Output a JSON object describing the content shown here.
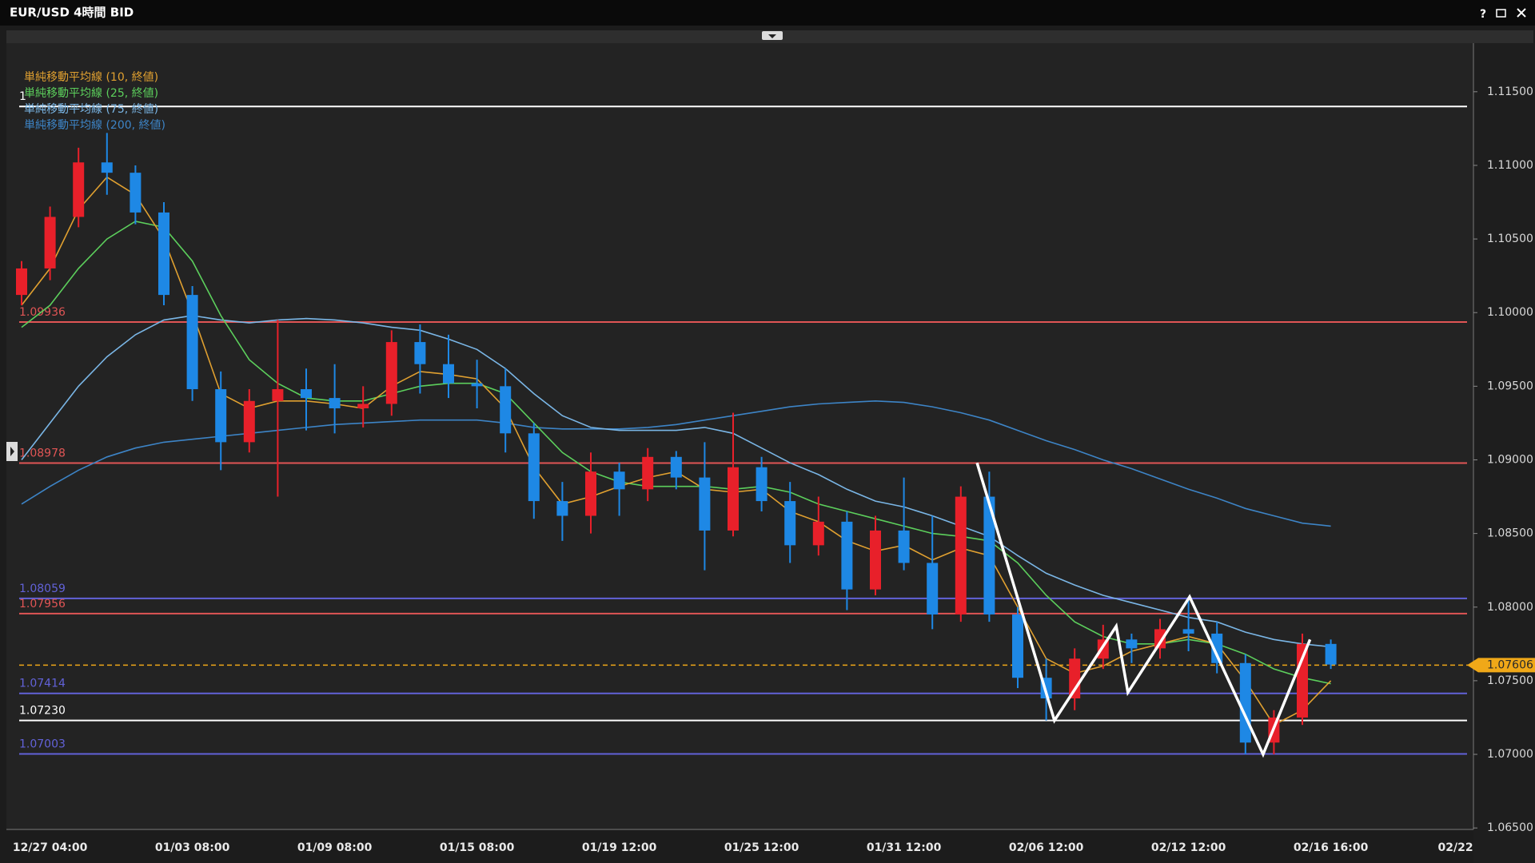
{
  "window": {
    "title": "EUR/USD 4時間 BID",
    "help": "?"
  },
  "chart_data": {
    "type": "candlestick",
    "categories": [
      null,
      "12/27 04:00",
      null,
      null,
      null,
      null,
      "01/03 08:00",
      null,
      null,
      null,
      null,
      "01/09 08:00",
      null,
      null,
      null,
      null,
      "01/15 08:00",
      null,
      null,
      null,
      null,
      "01/19 12:00",
      null,
      null,
      null,
      null,
      "01/25 12:00",
      null,
      null,
      null,
      null,
      "01/31 12:00",
      null,
      null,
      null,
      null,
      "02/06 12:00",
      null,
      null,
      null,
      null,
      "02/12 12:00",
      null,
      null,
      null,
      null,
      "02/16 16:00",
      null,
      null,
      null,
      null,
      "02/22"
    ],
    "open": [
      1.1012,
      1.103,
      1.1065,
      1.1102,
      1.1095,
      1.1068,
      1.1012,
      1.0948,
      1.0912,
      1.094,
      1.0948,
      1.0942,
      1.0935,
      1.0938,
      1.098,
      1.0965,
      1.0952,
      1.095,
      1.0918,
      1.0872,
      1.0862,
      1.0892,
      1.088,
      1.0902,
      1.0888,
      1.0852,
      1.0895,
      1.0872,
      1.0842,
      1.0858,
      1.0812,
      1.0852,
      1.083,
      1.0795,
      1.0875,
      1.0795,
      1.0752,
      1.0738,
      1.0765,
      1.0778,
      1.0772,
      1.0785,
      1.0782,
      1.0762,
      1.0708,
      1.0725,
      1.0775,
      null,
      null,
      null,
      null,
      null
    ],
    "high": [
      1.1035,
      1.1072,
      1.1112,
      1.1122,
      1.11,
      1.1075,
      1.1018,
      1.096,
      1.0948,
      1.0995,
      1.0962,
      1.0965,
      1.095,
      1.0988,
      1.0992,
      1.0985,
      1.0968,
      1.0962,
      1.0925,
      1.0885,
      1.0905,
      1.0898,
      1.0908,
      1.0906,
      1.0912,
      1.0932,
      1.0902,
      1.0885,
      1.0875,
      1.0865,
      1.0862,
      1.0888,
      1.0862,
      1.0882,
      1.0892,
      1.08,
      1.0765,
      1.0772,
      1.0788,
      1.0782,
      1.0792,
      1.0805,
      1.079,
      1.0768,
      1.073,
      1.0782,
      1.0778,
      null,
      null,
      null,
      null,
      null
    ],
    "low": [
      1.1005,
      1.1022,
      1.1058,
      1.108,
      1.106,
      1.1005,
      1.094,
      1.0893,
      1.0905,
      1.0875,
      1.092,
      1.0918,
      1.0922,
      1.093,
      1.0945,
      1.0942,
      1.0935,
      1.0905,
      1.086,
      1.0845,
      1.085,
      1.0862,
      1.0872,
      1.088,
      1.0825,
      1.0848,
      1.0865,
      1.083,
      1.0835,
      1.0798,
      1.0808,
      1.0825,
      1.0785,
      1.079,
      1.079,
      1.0745,
      1.0723,
      1.073,
      1.0758,
      1.0762,
      1.0765,
      1.077,
      1.0755,
      1.07,
      1.07,
      1.072,
      1.0758,
      null,
      null,
      null,
      null,
      null
    ],
    "close": [
      1.103,
      1.1065,
      1.1102,
      1.1095,
      1.1068,
      1.1012,
      1.0948,
      1.0912,
      1.094,
      1.0948,
      1.0942,
      1.0935,
      1.0938,
      1.098,
      1.0965,
      1.0952,
      1.095,
      1.0918,
      1.0872,
      1.0862,
      1.0892,
      1.088,
      1.0902,
      1.0888,
      1.0852,
      1.0895,
      1.0872,
      1.0842,
      1.0858,
      1.0812,
      1.0852,
      1.083,
      1.0795,
      1.0875,
      1.0795,
      1.0752,
      1.0738,
      1.0765,
      1.0778,
      1.0772,
      1.0785,
      1.0782,
      1.0762,
      1.0708,
      1.0725,
      1.0775,
      1.0761,
      null,
      null,
      null,
      null,
      null
    ],
    "up_color": "#e8202a",
    "down_color": "#1e88e5",
    "series": [
      {
        "name": "単純移動平均線 (10, 終値)",
        "color": "#e0a030",
        "values": [
          1.1005,
          1.103,
          1.107,
          1.1092,
          1.108,
          1.105,
          1.1,
          1.0945,
          1.0935,
          1.094,
          1.094,
          1.0938,
          1.0935,
          1.095,
          1.096,
          1.0958,
          1.0955,
          1.0935,
          1.0895,
          1.087,
          1.0875,
          1.0882,
          1.0888,
          1.0892,
          1.088,
          1.0878,
          1.088,
          1.0865,
          1.0858,
          1.0845,
          1.0838,
          1.0842,
          1.0832,
          1.084,
          1.0835,
          1.08,
          1.0765,
          1.0755,
          1.076,
          1.077,
          1.0775,
          1.078,
          1.0775,
          1.075,
          1.072,
          1.073,
          1.075,
          null,
          null,
          null,
          null,
          null
        ]
      },
      {
        "name": "単純移動平均線 (25, 終値)",
        "color": "#5ccf5c",
        "values": [
          1.099,
          1.1005,
          1.103,
          1.105,
          1.1062,
          1.1058,
          1.1035,
          1.0998,
          1.0968,
          1.0952,
          1.0942,
          1.094,
          1.094,
          1.0945,
          1.095,
          1.0952,
          1.0952,
          1.0945,
          1.0925,
          1.0905,
          1.0892,
          1.0885,
          1.0882,
          1.0882,
          1.0882,
          1.088,
          1.0882,
          1.0878,
          1.087,
          1.0865,
          1.086,
          1.0855,
          1.085,
          1.0848,
          1.0845,
          1.083,
          1.0808,
          1.079,
          1.078,
          1.0775,
          1.0775,
          1.0778,
          1.0775,
          1.0768,
          1.0758,
          1.0752,
          1.0748,
          null,
          null,
          null,
          null,
          null
        ]
      },
      {
        "name": "単純移動平均線 (75, 終値)",
        "color": "#7ab6e6",
        "values": [
          1.09,
          1.0925,
          1.095,
          1.097,
          1.0985,
          1.0995,
          1.0998,
          1.0995,
          1.0993,
          1.0995,
          1.0996,
          1.0995,
          1.0993,
          1.099,
          1.0988,
          1.0982,
          1.0975,
          1.0962,
          1.0945,
          1.093,
          1.0922,
          1.092,
          1.092,
          1.092,
          1.0922,
          1.0918,
          1.0908,
          1.0898,
          1.089,
          1.088,
          1.0872,
          1.0868,
          1.0862,
          1.0855,
          1.0848,
          1.0835,
          1.0823,
          1.0815,
          1.0808,
          1.0803,
          1.0798,
          1.0793,
          1.079,
          1.0783,
          1.0778,
          1.0775,
          1.0773,
          null,
          null,
          null,
          null,
          null
        ]
      },
      {
        "name": "単純移動平均線 (200, 終値)",
        "color": "#3d84c6",
        "values": [
          1.087,
          1.0882,
          1.0893,
          1.0902,
          1.0908,
          1.0912,
          1.0914,
          1.0916,
          1.0918,
          1.092,
          1.0922,
          1.0924,
          1.0925,
          1.0926,
          1.0927,
          1.0927,
          1.0927,
          1.0925,
          1.0922,
          1.0921,
          1.0921,
          1.0921,
          1.0922,
          1.0924,
          1.0927,
          1.093,
          1.0933,
          1.0936,
          1.0938,
          1.0939,
          1.094,
          1.0939,
          1.0936,
          1.0932,
          1.0927,
          1.092,
          1.0913,
          1.0907,
          1.09,
          1.0894,
          1.0887,
          1.088,
          1.0874,
          1.0867,
          1.0862,
          1.0857,
          1.0855,
          null,
          null,
          null,
          null,
          null
        ]
      }
    ],
    "ylim": [
      1.0649,
      1.1183
    ],
    "yticks": [
      {
        "value": 1.065,
        "label": "1.06500"
      },
      {
        "value": 1.07,
        "label": "1.07000"
      },
      {
        "value": 1.075,
        "label": "1.07500"
      },
      {
        "value": 1.08,
        "label": "1.08000"
      },
      {
        "value": 1.085,
        "label": "1.08500"
      },
      {
        "value": 1.09,
        "label": "1.09000"
      },
      {
        "value": 1.095,
        "label": "1.09500"
      },
      {
        "value": 1.1,
        "label": "1.10000"
      },
      {
        "value": 1.105,
        "label": "1.10500"
      },
      {
        "value": 1.11,
        "label": "1.11000"
      },
      {
        "value": 1.115,
        "label": "1.11500"
      }
    ],
    "levels": [
      {
        "value": 1.114,
        "label": "1",
        "color": "#ffffff"
      },
      {
        "value": 1.09936,
        "label": "1.09936",
        "color": "#e05555"
      },
      {
        "value": 1.08978,
        "label": "1.08978",
        "color": "#e05555"
      },
      {
        "value": 1.08059,
        "label": "1.08059",
        "color": "#6262d8"
      },
      {
        "value": 1.07956,
        "label": "1.07956",
        "color": "#e05555"
      },
      {
        "value": 1.07414,
        "label": "1.07414",
        "color": "#6262d8"
      },
      {
        "value": 1.0723,
        "label": "1.07230",
        "color": "#ffffff"
      },
      {
        "value": 1.07003,
        "label": "1.07003",
        "color": "#6262d8"
      }
    ],
    "current_price": {
      "value": 1.07606,
      "label": "1.07606",
      "color": "#f0a818"
    },
    "trendline": {
      "color": "#ffffff",
      "x": [
        33.57,
        36.29,
        38.46,
        38.87,
        41.04,
        43.62,
        45.27
      ],
      "values": [
        1.0898,
        1.0723,
        1.0787,
        1.0742,
        1.0807,
        1.07,
        1.0778
      ]
    }
  }
}
